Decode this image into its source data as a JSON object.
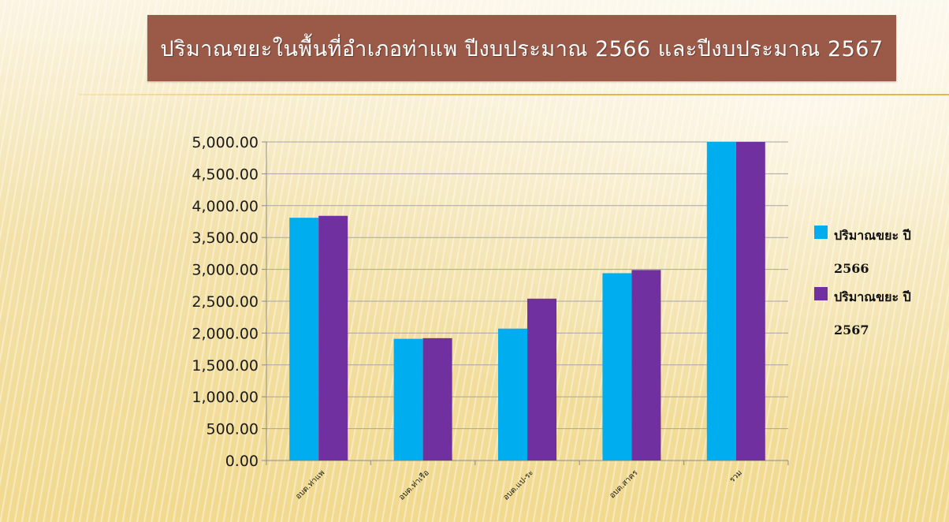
{
  "slide": {
    "title": "ปริมาณขยะในพื้นที่อำเภอท่าแพ ปีงบประมาณ 2566 และปีงบประมาณ 2567"
  },
  "chart_data": {
    "type": "bar",
    "title": "",
    "xlabel": "",
    "ylabel": "",
    "categories": [
      "อบต.ท่าแพ",
      "อบต.ท่าเรือ",
      "อบต.แป-ระ",
      "อบต.สาคร",
      "รวม"
    ],
    "series": [
      {
        "name": "ปริมาณขยะ ปี 2566",
        "color": "#00aeef",
        "values": [
          3810,
          1910,
          2070,
          2940,
          5000
        ]
      },
      {
        "name": "ปริมาณขยะ ปี 2567",
        "color": "#7030a0",
        "values": [
          3840,
          1920,
          2540,
          2990,
          5000
        ]
      }
    ],
    "ylim": [
      0,
      5000
    ],
    "yticks": [
      "0.00",
      "500.00",
      "1,000.00",
      "1,500.00",
      "2,000.00",
      "2,500.00",
      "3,000.00",
      "3,500.00",
      "4,000.00",
      "4,500.00",
      "5,000.00"
    ],
    "grid": true,
    "legend_position": "right"
  }
}
